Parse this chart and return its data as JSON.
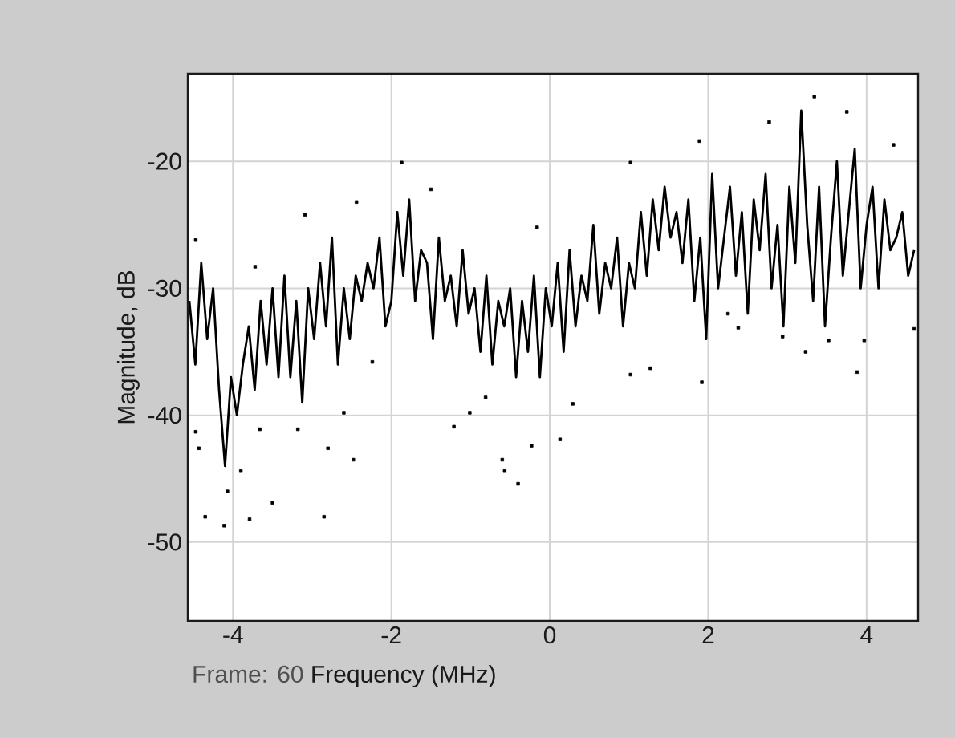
{
  "chart_data": {
    "type": "line",
    "xlabel": "Frequency (MHz)",
    "ylabel": "Magnitude, dB",
    "annotations": [
      "Frame: 60"
    ],
    "xlim": [
      -4.57,
      4.65
    ],
    "ylim": [
      -56.2,
      -13.1
    ],
    "xticks": [
      -4,
      -2,
      0,
      2,
      4
    ],
    "yticks": [
      -50,
      -40,
      -30,
      -20
    ],
    "grid": true,
    "series": [
      {
        "type": "line",
        "color": "#000000",
        "x": [
          -4.55,
          -4.475,
          -4.4,
          -4.325,
          -4.25,
          -4.175,
          -4.1,
          -4.025,
          -3.95,
          -3.875,
          -3.8,
          -3.725,
          -3.65,
          -3.575,
          -3.5,
          -3.425,
          -3.35,
          -3.275,
          -3.2,
          -3.125,
          -3.05,
          -2.975,
          -2.9,
          -2.825,
          -2.75,
          -2.675,
          -2.6,
          -2.525,
          -2.45,
          -2.375,
          -2.3,
          -2.225,
          -2.15,
          -2.075,
          -2.0,
          -1.925,
          -1.85,
          -1.775,
          -1.7,
          -1.625,
          -1.55,
          -1.475,
          -1.4,
          -1.325,
          -1.25,
          -1.175,
          -1.1,
          -1.025,
          -0.95,
          -0.875,
          -0.8,
          -0.725,
          -0.65,
          -0.575,
          -0.5,
          -0.425,
          -0.35,
          -0.275,
          -0.2,
          -0.125,
          -0.05,
          0.025,
          0.1,
          0.175,
          0.25,
          0.325,
          0.4,
          0.475,
          0.55,
          0.625,
          0.7,
          0.775,
          0.85,
          0.925,
          1.0,
          1.075,
          1.15,
          1.225,
          1.3,
          1.375,
          1.45,
          1.525,
          1.6,
          1.675,
          1.75,
          1.825,
          1.9,
          1.975,
          2.05,
          2.125,
          2.2,
          2.275,
          2.35,
          2.425,
          2.5,
          2.575,
          2.65,
          2.725,
          2.8,
          2.875,
          2.95,
          3.025,
          3.1,
          3.175,
          3.25,
          3.325,
          3.4,
          3.475,
          3.55,
          3.625,
          3.7,
          3.775,
          3.85,
          3.925,
          4.0,
          4.075,
          4.15,
          4.225,
          4.3,
          4.375,
          4.45,
          4.525,
          4.6
        ],
        "values": [
          -31,
          -36,
          -28,
          -34,
          -30,
          -38,
          -44,
          -37,
          -40,
          -36,
          -33,
          -38,
          -31,
          -36,
          -30,
          -37,
          -29,
          -37,
          -31,
          -39,
          -30,
          -34,
          -28,
          -33,
          -26,
          -36,
          -30,
          -34,
          -29,
          -31,
          -28,
          -30,
          -26,
          -33,
          -31,
          -24,
          -29,
          -23,
          -31,
          -27,
          -28,
          -34,
          -26,
          -31,
          -29,
          -33,
          -27,
          -32,
          -30,
          -35,
          -29,
          -36,
          -31,
          -33,
          -30,
          -37,
          -31,
          -35,
          -29,
          -37,
          -30,
          -33,
          -28,
          -35,
          -27,
          -33,
          -29,
          -31,
          -25,
          -32,
          -28,
          -30,
          -26,
          -33,
          -28,
          -30,
          -24,
          -29,
          -23,
          -27,
          -22,
          -26,
          -24,
          -28,
          -23,
          -31,
          -26,
          -34,
          -21,
          -30,
          -26,
          -22,
          -29,
          -24,
          -32,
          -23,
          -27,
          -21,
          -30,
          -25,
          -33,
          -22,
          -28,
          -16,
          -25,
          -31,
          -22,
          -33,
          -26,
          -20,
          -29,
          -24,
          -19,
          -30,
          -25,
          -22,
          -30,
          -23,
          -27,
          -26,
          -24,
          -29,
          -27
        ]
      },
      {
        "type": "scatter",
        "color": "#000000",
        "marker": "square",
        "x": [
          -4.35,
          -4.11,
          -3.79,
          -3.5,
          -2.85,
          -4.47,
          -4.43,
          -3.9,
          -4.07,
          -3.66,
          -3.18,
          -2.8,
          -2.6,
          -2.48,
          -1.87,
          -3.09,
          -2.44,
          -3.72,
          -4.47,
          -2.24,
          -0.4,
          -0.57,
          -0.6,
          -0.23,
          0.13,
          -1.21,
          -1.01,
          -1.5,
          -0.16,
          0.29,
          1.02,
          1.02,
          1.27,
          -0.81,
          3.34,
          3.75,
          2.77,
          1.92,
          3.88,
          3.23,
          2.94,
          4.6,
          2.25,
          2.38,
          3.52,
          3.97,
          1.89,
          4.34
        ],
        "values": [
          -48.0,
          -48.7,
          -48.2,
          -46.9,
          -48.0,
          -41.3,
          -42.6,
          -44.4,
          -46.0,
          -41.1,
          -41.1,
          -42.6,
          -39.8,
          -43.5,
          -20.1,
          -24.2,
          -23.2,
          -28.3,
          -26.2,
          -35.8,
          -45.4,
          -44.4,
          -43.5,
          -42.4,
          -41.9,
          -40.9,
          -39.8,
          -22.2,
          -25.2,
          -39.1,
          -20.1,
          -36.8,
          -36.3,
          -38.6,
          -14.9,
          -16.1,
          -16.9,
          -37.4,
          -36.6,
          -35.0,
          -33.8,
          -33.2,
          -32.0,
          -33.1,
          -34.1,
          -34.1,
          -18.4,
          -18.7
        ]
      }
    ]
  }
}
